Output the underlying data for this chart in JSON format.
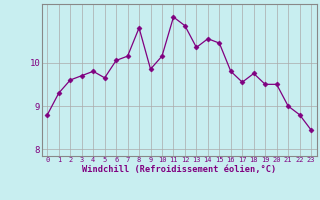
{
  "x": [
    0,
    1,
    2,
    3,
    4,
    5,
    6,
    7,
    8,
    9,
    10,
    11,
    12,
    13,
    14,
    15,
    16,
    17,
    18,
    19,
    20,
    21,
    22,
    23
  ],
  "y": [
    8.8,
    9.3,
    9.6,
    9.7,
    9.8,
    9.65,
    10.05,
    10.15,
    10.8,
    9.85,
    10.15,
    11.05,
    10.85,
    10.35,
    10.55,
    10.45,
    9.8,
    9.55,
    9.75,
    9.5,
    9.5,
    9.0,
    8.8,
    8.45
  ],
  "line_color": "#800080",
  "marker": "D",
  "marker_size": 2.5,
  "bg_color": "#c8eef0",
  "grid_color": "#aaaaaa",
  "xlabel": "Windchill (Refroidissement éolien,°C)",
  "xlabel_color": "#800080",
  "tick_color": "#800080",
  "yticks": [
    8,
    9,
    10
  ],
  "xticks": [
    0,
    1,
    2,
    3,
    4,
    5,
    6,
    7,
    8,
    9,
    10,
    11,
    12,
    13,
    14,
    15,
    16,
    17,
    18,
    19,
    20,
    21,
    22,
    23
  ],
  "ylim": [
    7.85,
    11.35
  ],
  "xlim": [
    -0.5,
    23.5
  ]
}
